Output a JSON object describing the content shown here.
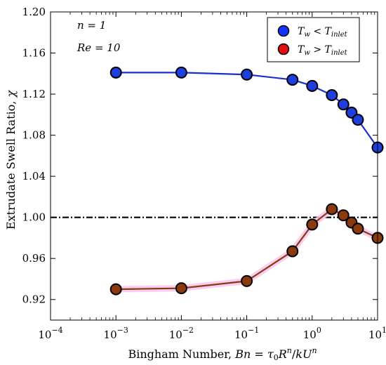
{
  "chart_data": {
    "type": "line",
    "xscale": "log",
    "xlim": [
      0.0001,
      10
    ],
    "ylim": [
      0.9,
      1.2
    ],
    "xlabel": "Bingham Number, Bn = τ₀Rⁿ/kUⁿ",
    "ylabel": "Extrudate Swell Ratio, χ",
    "x_ticks": [
      {
        "value": 0.0001,
        "base": "10",
        "exp": "−4"
      },
      {
        "value": 0.001,
        "base": "10",
        "exp": "−3"
      },
      {
        "value": 0.01,
        "base": "10",
        "exp": "−2"
      },
      {
        "value": 0.1,
        "base": "10",
        "exp": "−1"
      },
      {
        "value": 1,
        "base": "10",
        "exp": "0"
      },
      {
        "value": 10,
        "base": "10",
        "exp": "1"
      }
    ],
    "y_ticks": [
      0.92,
      0.96,
      1.0,
      1.04,
      1.08,
      1.12,
      1.16,
      1.2
    ],
    "y_tick_labels": [
      "0.92",
      "0.96",
      "1.00",
      "1.04",
      "1.08",
      "1.12",
      "1.16",
      "1.20"
    ],
    "annotations": [
      "n = 1",
      "Re = 10"
    ],
    "reference_line": {
      "y": 1.0,
      "style": "dash-dot",
      "color": "#000000"
    },
    "legend_position": "top-right",
    "series": [
      {
        "name": "Tw < Tinlet",
        "line_color": "#1a2fd0",
        "marker_color": "#1e3fe0",
        "x": [
          0.001,
          0.01,
          0.1,
          0.5,
          1,
          2,
          3,
          4,
          5,
          10
        ],
        "y": [
          1.141,
          1.141,
          1.139,
          1.134,
          1.128,
          1.119,
          1.11,
          1.102,
          1.095,
          1.068
        ]
      },
      {
        "name": "Tw > Tinlet",
        "line_color": "#8a3a0e",
        "marker_color": "#8a3a0e",
        "x": [
          0.001,
          0.01,
          0.1,
          0.5,
          1,
          2,
          3,
          4,
          5,
          10
        ],
        "y": [
          0.93,
          0.931,
          0.938,
          0.967,
          0.993,
          1.008,
          1.002,
          0.995,
          0.989,
          0.98
        ]
      }
    ]
  },
  "legend_entries": [
    {
      "name": "Tw < Tinlet",
      "marker_color": "#1533ff"
    },
    {
      "name": "Tw > Tinlet",
      "marker_color": "#e01010"
    }
  ]
}
